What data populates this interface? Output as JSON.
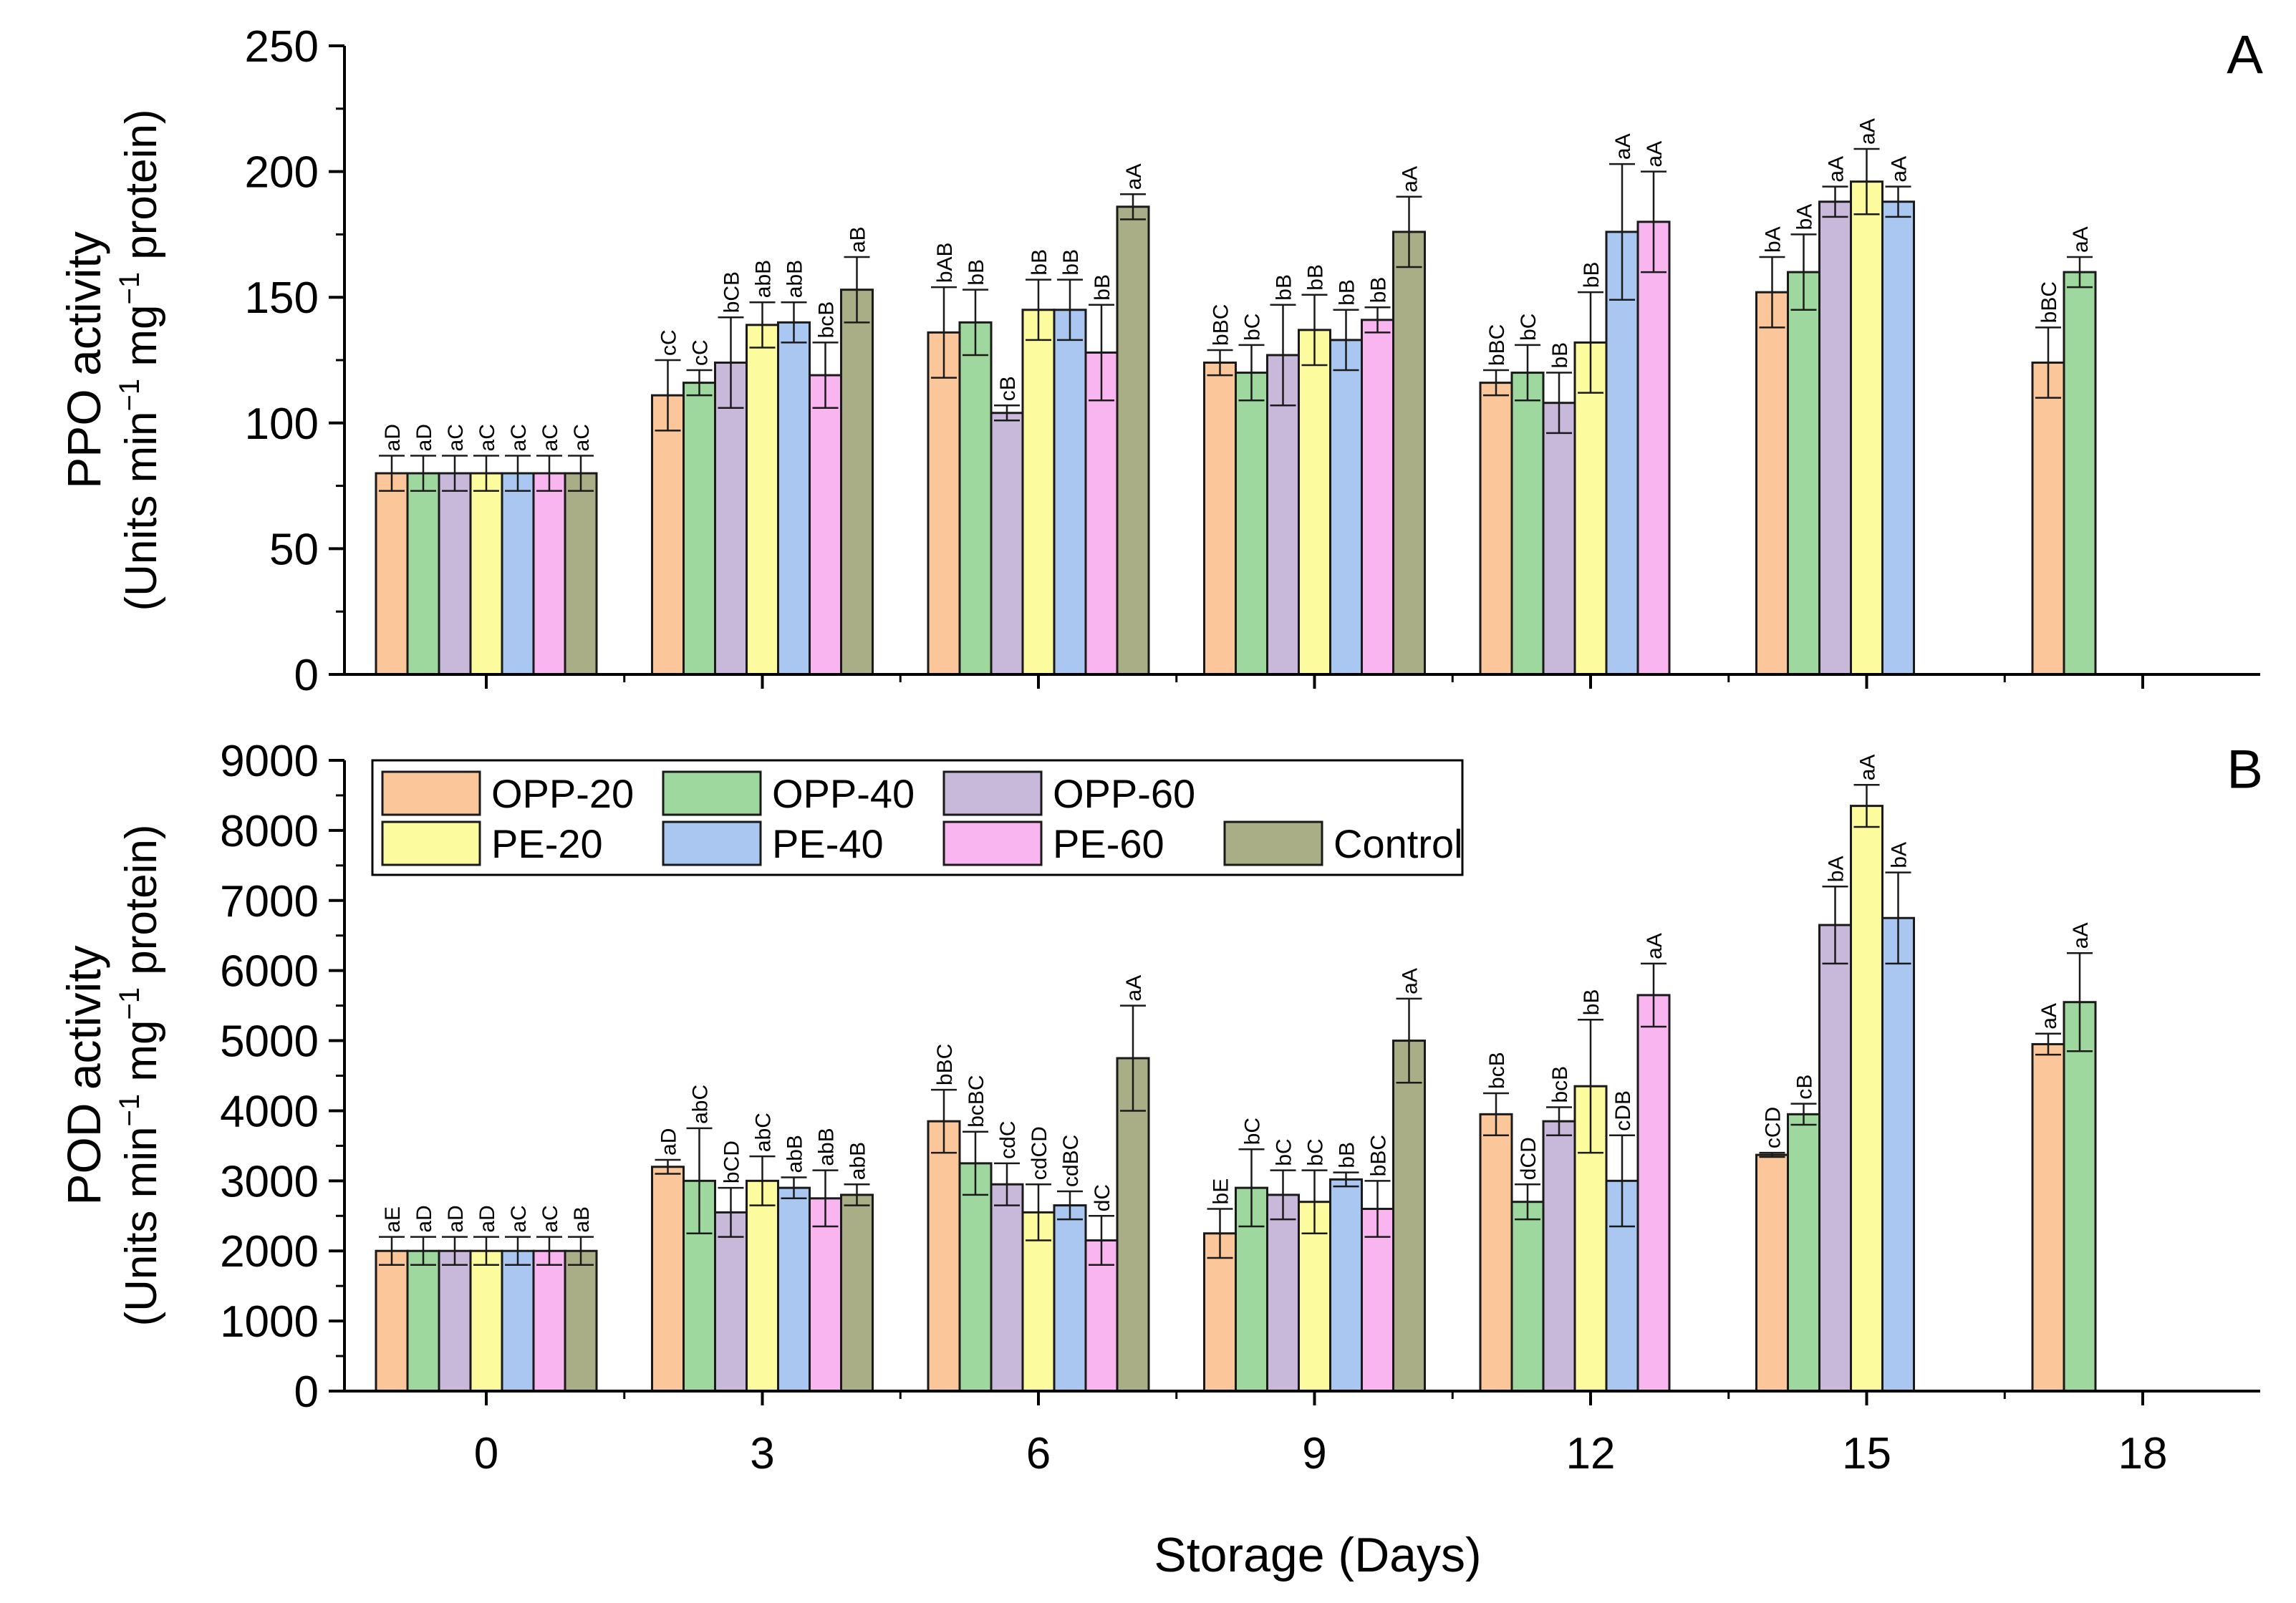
{
  "chart_data": [
    {
      "panel": "A",
      "type": "bar",
      "ylabel": "PPO activity",
      "ylabel_units": {
        "pre": "(Units min",
        "sup1": "−1",
        "mid": " mg",
        "sup2": "−1",
        "post": " protein)"
      },
      "xlabel": "",
      "ylim": [
        0,
        250
      ],
      "yticks": [
        0,
        50,
        100,
        150,
        200,
        250
      ],
      "categories": [
        "0",
        "3",
        "6",
        "9",
        "12",
        "15",
        "18"
      ],
      "series": [
        {
          "name": "OPP-20",
          "color": "#FBC79A",
          "values": [
            80,
            111,
            136,
            124,
            116,
            152,
            124
          ],
          "errors": [
            7,
            14,
            18,
            5,
            5,
            14,
            14
          ],
          "labels": [
            "aD",
            "cC",
            "bAB",
            "bBC",
            "bBC",
            "bA",
            "bBC"
          ]
        },
        {
          "name": "OPP-40",
          "color": "#9ED89E",
          "values": [
            80,
            116,
            140,
            120,
            120,
            160,
            160
          ],
          "errors": [
            7,
            5,
            13,
            11,
            11,
            15,
            6
          ],
          "labels": [
            "aD",
            "cC",
            "bB",
            "bC",
            "bC",
            "bA",
            "aA"
          ]
        },
        {
          "name": "OPP-60",
          "color": "#C8B8DA",
          "values": [
            80,
            124,
            104,
            127,
            108,
            188,
            null
          ],
          "errors": [
            7,
            18,
            3,
            20,
            12,
            6,
            null
          ],
          "labels": [
            "aC",
            "bCB",
            "cB",
            "bB",
            "bB",
            "aA",
            null
          ]
        },
        {
          "name": "PE-20",
          "color": "#FCFC9E",
          "values": [
            80,
            139,
            145,
            137,
            132,
            196,
            null
          ],
          "errors": [
            7,
            9,
            12,
            14,
            20,
            13,
            null
          ],
          "labels": [
            "aC",
            "abB",
            "bB",
            "bB",
            "bB",
            "aA",
            null
          ]
        },
        {
          "name": "PE-40",
          "color": "#A9C7F1",
          "values": [
            80,
            140,
            145,
            133,
            176,
            188,
            null
          ],
          "errors": [
            7,
            8,
            12,
            12,
            27,
            6,
            null
          ],
          "labels": [
            "aC",
            "abB",
            "bB",
            "bB",
            "aA",
            "aA",
            null
          ]
        },
        {
          "name": "PE-60",
          "color": "#F9B5EF",
          "values": [
            80,
            119,
            128,
            141,
            180,
            null,
            null
          ],
          "errors": [
            7,
            13,
            19,
            5,
            20,
            null,
            null
          ],
          "labels": [
            "aC",
            "bcB",
            "bB",
            "bB",
            "aA",
            null,
            null
          ]
        },
        {
          "name": "Control",
          "color": "#A9AE86",
          "values": [
            80,
            153,
            186,
            176,
            null,
            null,
            null
          ],
          "errors": [
            7,
            13,
            5,
            14,
            null,
            null,
            null
          ],
          "labels": [
            "aC",
            "aB",
            "aA",
            "aA",
            null,
            null,
            null
          ]
        }
      ]
    },
    {
      "panel": "B",
      "type": "bar",
      "ylabel": "POD activity",
      "ylabel_units": {
        "pre": "(Units min",
        "sup1": "−1",
        "mid": " mg",
        "sup2": "−1",
        "post": " protein)"
      },
      "xlabel": "Storage (Days)",
      "ylim": [
        0,
        9000
      ],
      "yticks": [
        0,
        1000,
        2000,
        3000,
        4000,
        5000,
        6000,
        7000,
        8000,
        9000
      ],
      "categories": [
        "0",
        "3",
        "6",
        "9",
        "12",
        "15",
        "18"
      ],
      "legend": {
        "placement": "top-left",
        "entries": [
          "OPP-20",
          "OPP-40",
          "OPP-60",
          "PE-20",
          "PE-40",
          "PE-60",
          "Control"
        ]
      },
      "series": [
        {
          "name": "OPP-20",
          "color": "#FBC79A",
          "values": [
            2000,
            3200,
            3850,
            2250,
            3950,
            3370,
            4950
          ],
          "errors": [
            200,
            100,
            450,
            350,
            300,
            30,
            150
          ],
          "labels": [
            "aE",
            "aD",
            "bBC",
            "bE",
            "bcB",
            "cCD",
            "aA"
          ]
        },
        {
          "name": "OPP-40",
          "color": "#9ED89E",
          "values": [
            2000,
            3000,
            3250,
            2900,
            2700,
            3950,
            5550
          ],
          "errors": [
            200,
            750,
            450,
            550,
            250,
            150,
            700
          ],
          "labels": [
            "aD",
            "abC",
            "bcBC",
            "bC",
            "dCD",
            "cB",
            "aA"
          ]
        },
        {
          "name": "OPP-60",
          "color": "#C8B8DA",
          "values": [
            2000,
            2550,
            2950,
            2800,
            3850,
            6650,
            null
          ],
          "errors": [
            200,
            350,
            300,
            350,
            200,
            550,
            null
          ],
          "labels": [
            "aD",
            "bCD",
            "cdC",
            "bC",
            "bcB",
            "bA",
            null
          ]
        },
        {
          "name": "PE-20",
          "color": "#FCFC9E",
          "values": [
            2000,
            3000,
            2550,
            2700,
            4350,
            8350,
            null
          ],
          "errors": [
            200,
            350,
            400,
            450,
            950,
            300,
            null
          ],
          "labels": [
            "aD",
            "abC",
            "cdCD",
            "bC",
            "bB",
            "aA",
            null
          ]
        },
        {
          "name": "PE-40",
          "color": "#A9C7F1",
          "values": [
            2000,
            2900,
            2650,
            3020,
            3000,
            6750,
            null
          ],
          "errors": [
            200,
            150,
            200,
            100,
            650,
            650,
            null
          ],
          "labels": [
            "aC",
            "abB",
            "cdBC",
            "bB",
            "cDB",
            "bA",
            null
          ]
        },
        {
          "name": "PE-60",
          "color": "#F9B5EF",
          "values": [
            2000,
            2750,
            2150,
            2600,
            5650,
            null,
            null
          ],
          "errors": [
            200,
            400,
            350,
            400,
            450,
            null,
            null
          ],
          "labels": [
            "aC",
            "abB",
            "dC",
            "bBC",
            "aA",
            null,
            null
          ]
        },
        {
          "name": "Control",
          "color": "#A9AE86",
          "values": [
            2000,
            2800,
            4750,
            5000,
            null,
            null,
            null
          ],
          "errors": [
            200,
            150,
            750,
            600,
            null,
            null,
            null
          ],
          "labels": [
            "aB",
            "abB",
            "aA",
            "aA",
            null,
            null,
            null
          ]
        }
      ]
    }
  ]
}
